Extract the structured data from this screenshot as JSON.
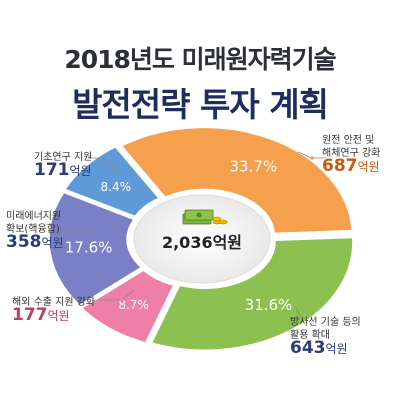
{
  "title": {
    "line1": "2018년도 미래원자력기술",
    "line2": "발전전략 투자 계획"
  },
  "total_label": "2,036억원",
  "chart_data": {
    "type": "pie",
    "title": "2018년도 미래원자력기술 발전전략 투자 계획",
    "unit": "억원",
    "total": 2036,
    "slices": [
      {
        "label": "원전 안전 및 해체연구 강화",
        "value": 687,
        "percent": 33.7,
        "percent_label": "33.7%",
        "amount_label": "687",
        "color": "#f5a04c"
      },
      {
        "label": "방사선 기술 등의 활용 확대",
        "value": 643,
        "percent": 31.6,
        "percent_label": "31.6%",
        "amount_label": "643",
        "color": "#8cc152"
      },
      {
        "label": "해외 수출 지원 강화",
        "value": 177,
        "percent": 8.7,
        "percent_label": "8.7%",
        "amount_label": "177",
        "color": "#ee7fa6"
      },
      {
        "label": "미래에너지원 확보(핵융합)",
        "value": 358,
        "percent": 17.6,
        "percent_label": "17.6%",
        "amount_label": "358",
        "color": "#7b7fc5"
      },
      {
        "label": "기초연구 지원",
        "value": 171,
        "percent": 8.4,
        "percent_label": "8.4%",
        "amount_label": "171",
        "color": "#5f9ad8"
      }
    ],
    "legend_labels": {
      "s0_line1": "원전 안전 및",
      "s0_line2": "해체연구 강화",
      "s1_line1": "방사선 기술 등의",
      "s1_line2": "활용 확대",
      "s2_line1": "해외 수출 지원 강화",
      "s3_line1": "미래에너지원",
      "s3_line2": "확보(핵융합)",
      "s4_line1": "기초연구 지원"
    },
    "unit_label": "억원"
  }
}
